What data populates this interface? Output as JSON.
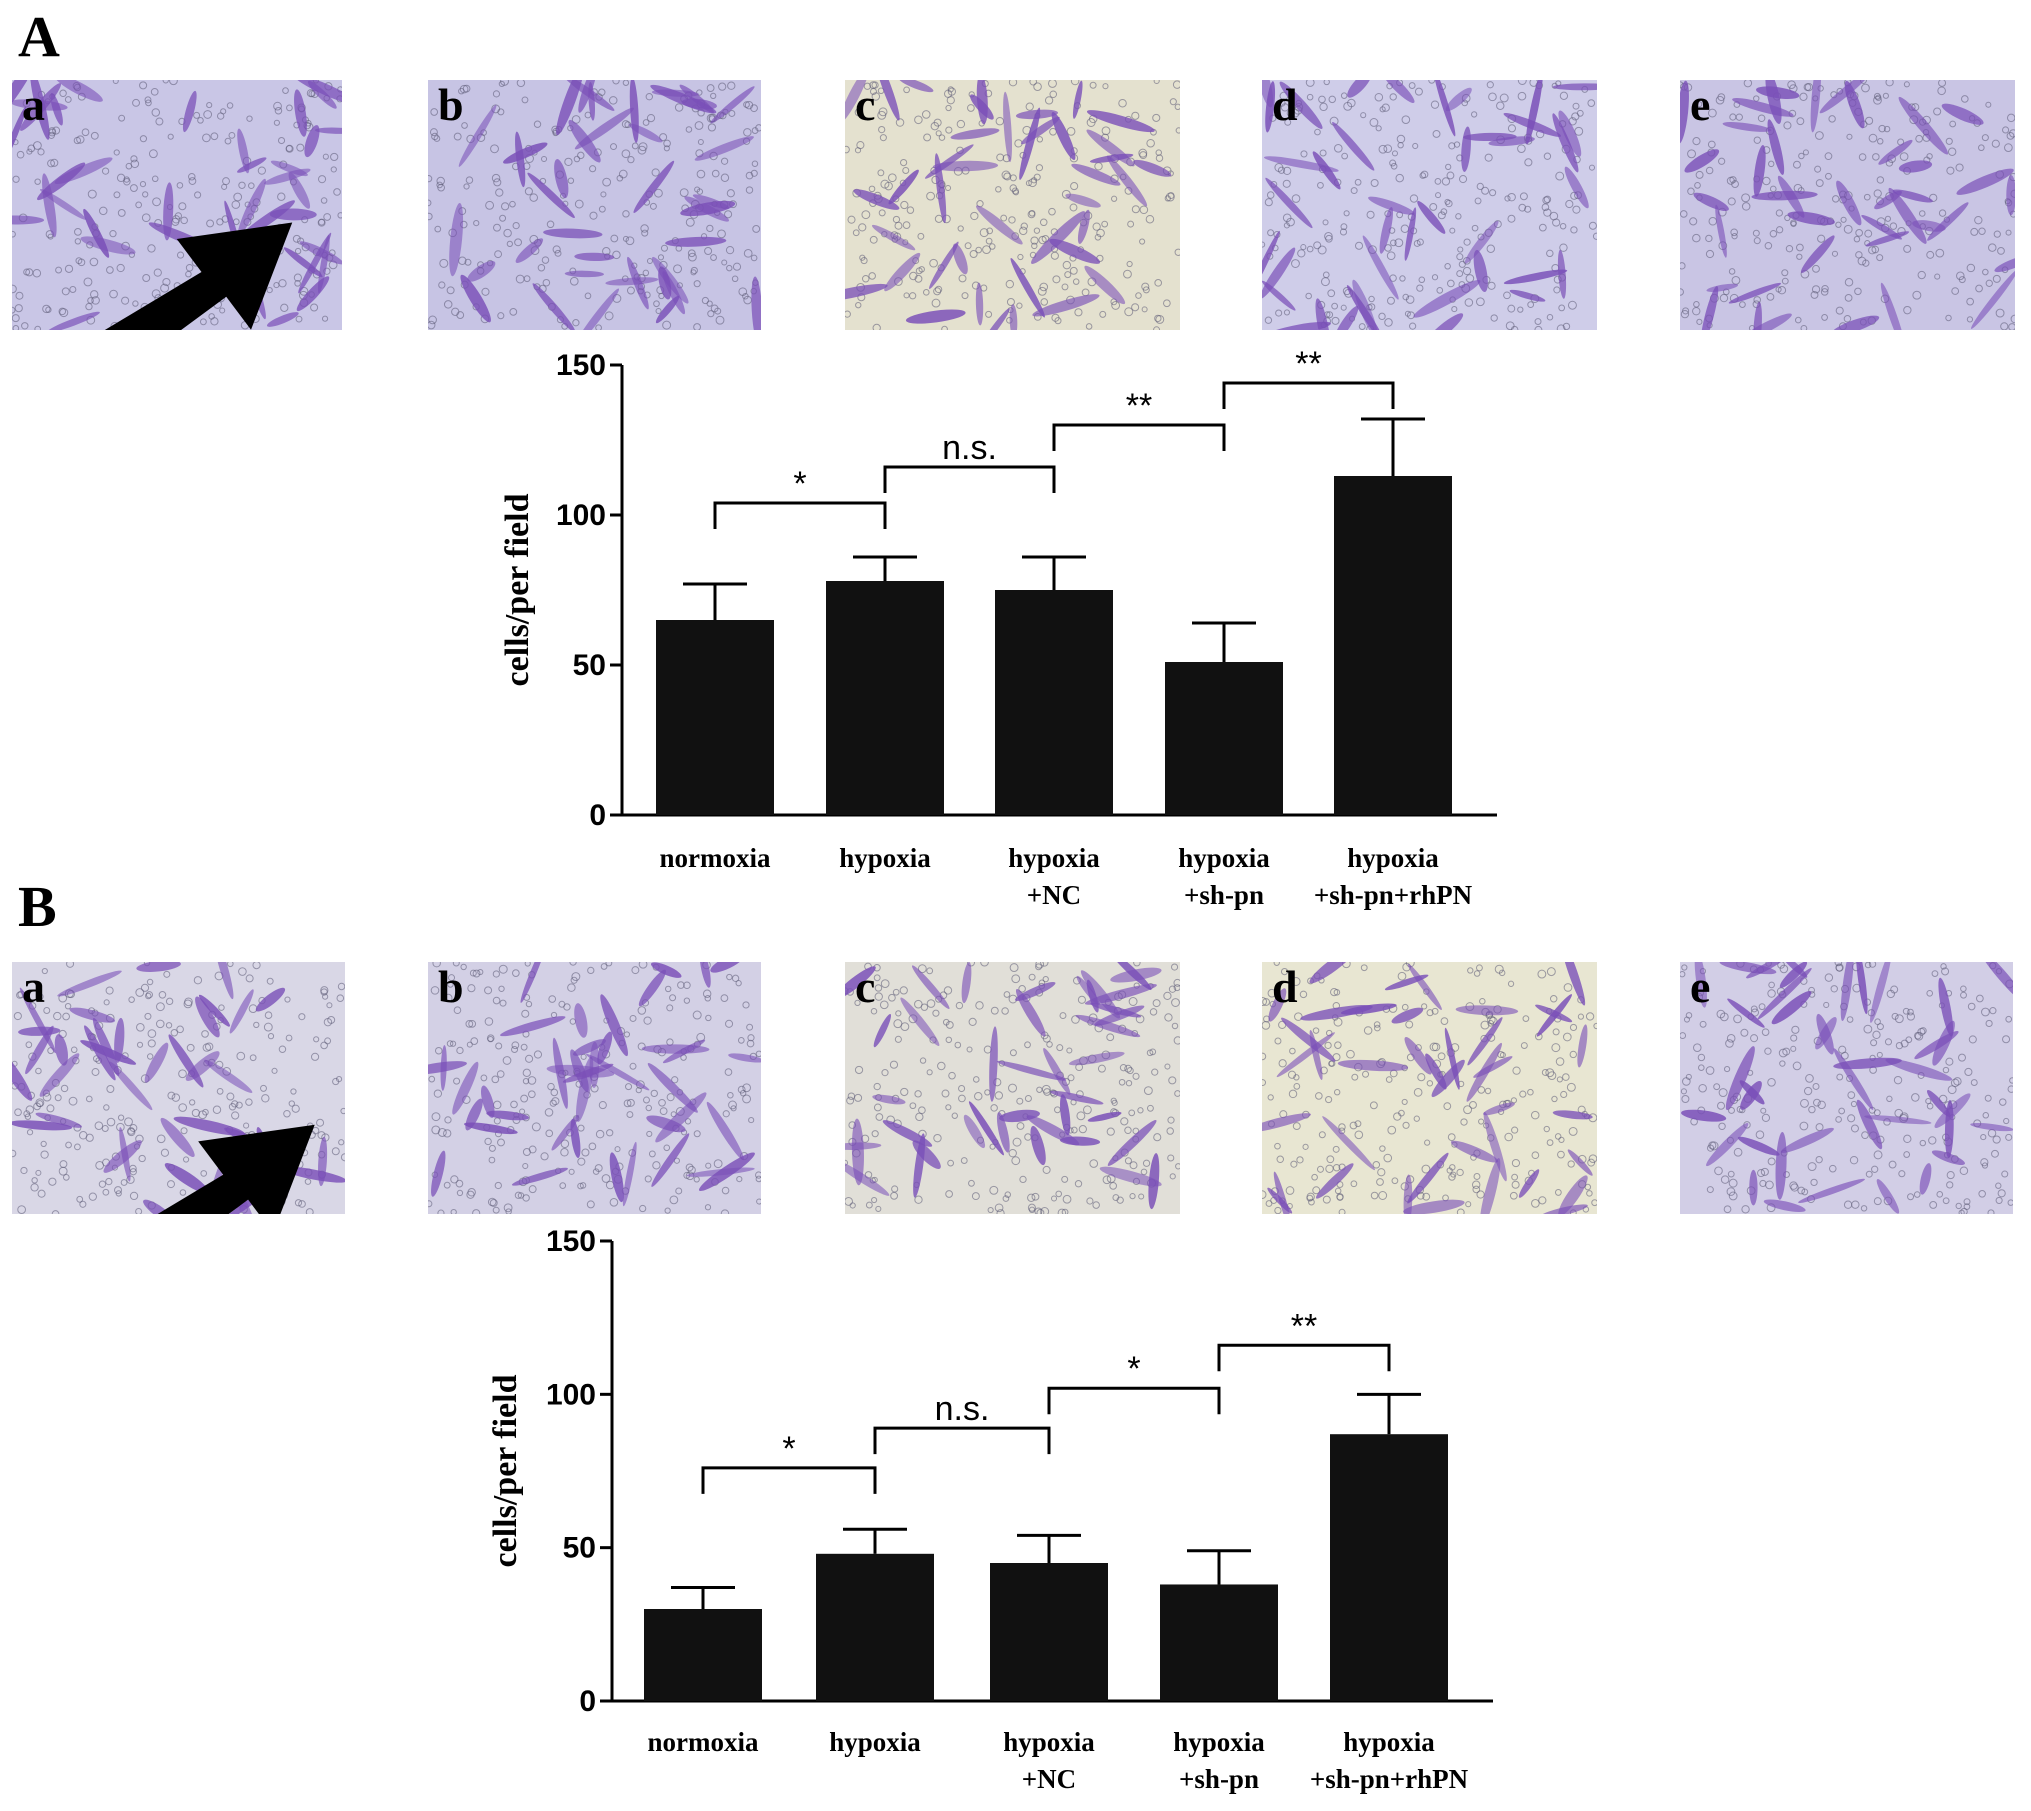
{
  "panels": [
    {
      "letter": "A",
      "micrographs": [
        {
          "label": "a",
          "tint": "#c9c6e6",
          "arrow": true
        },
        {
          "label": "b",
          "tint": "#c7c4e4",
          "arrow": false
        },
        {
          "label": "c",
          "tint": "#e4e1cf",
          "arrow": false
        },
        {
          "label": "d",
          "tint": "#cfcde9",
          "arrow": false
        },
        {
          "label": "e",
          "tint": "#c9c5e4",
          "arrow": false
        }
      ]
    },
    {
      "letter": "B",
      "micrographs": [
        {
          "label": "a",
          "tint": "#d9d7e6",
          "arrow": true
        },
        {
          "label": "b",
          "tint": "#d3d0e5",
          "arrow": false
        },
        {
          "label": "c",
          "tint": "#e1dfd8",
          "arrow": false
        },
        {
          "label": "d",
          "tint": "#e8e6d2",
          "arrow": false
        },
        {
          "label": "e",
          "tint": "#d2cee6",
          "arrow": false
        }
      ]
    }
  ],
  "chart_data": [
    {
      "type": "bar",
      "panel": "A",
      "ylabel": "cells/per field",
      "ylim": [
        0,
        150
      ],
      "yticks": [
        "0",
        "50",
        "100",
        "150"
      ],
      "categories": [
        [
          "normoxia"
        ],
        [
          "hypoxia"
        ],
        [
          "hypoxia",
          "+NC"
        ],
        [
          "hypoxia",
          "+sh-pn"
        ],
        [
          "hypoxia",
          "+sh-pn+rhPN"
        ]
      ],
      "values": [
        65,
        78,
        75,
        51,
        113
      ],
      "errors": [
        12,
        8,
        11,
        13,
        19
      ],
      "bar_color": "#111111",
      "significance": [
        {
          "from": 0,
          "to": 1,
          "label": "*",
          "y": 104
        },
        {
          "from": 1,
          "to": 2,
          "label": "n.s.",
          "y": 116
        },
        {
          "from": 2,
          "to": 3,
          "label": "**",
          "y": 130
        },
        {
          "from": 3,
          "to": 4,
          "label": "**",
          "y": 144
        }
      ]
    },
    {
      "type": "bar",
      "panel": "B",
      "ylabel": "cells/per field",
      "ylim": [
        0,
        150
      ],
      "yticks": [
        "0",
        "50",
        "100",
        "150"
      ],
      "categories": [
        [
          "normoxia"
        ],
        [
          "hypoxia"
        ],
        [
          "hypoxia",
          "+NC"
        ],
        [
          "hypoxia",
          "+sh-pn"
        ],
        [
          "hypoxia",
          "+sh-pn+rhPN"
        ]
      ],
      "values": [
        30,
        48,
        45,
        38,
        87
      ],
      "errors": [
        7,
        8,
        9,
        11,
        13
      ],
      "bar_color": "#111111",
      "significance": [
        {
          "from": 0,
          "to": 1,
          "label": "*",
          "y": 76
        },
        {
          "from": 1,
          "to": 2,
          "label": "n.s.",
          "y": 89
        },
        {
          "from": 2,
          "to": 3,
          "label": "*",
          "y": 102
        },
        {
          "from": 3,
          "to": 4,
          "label": "**",
          "y": 116
        }
      ]
    }
  ]
}
